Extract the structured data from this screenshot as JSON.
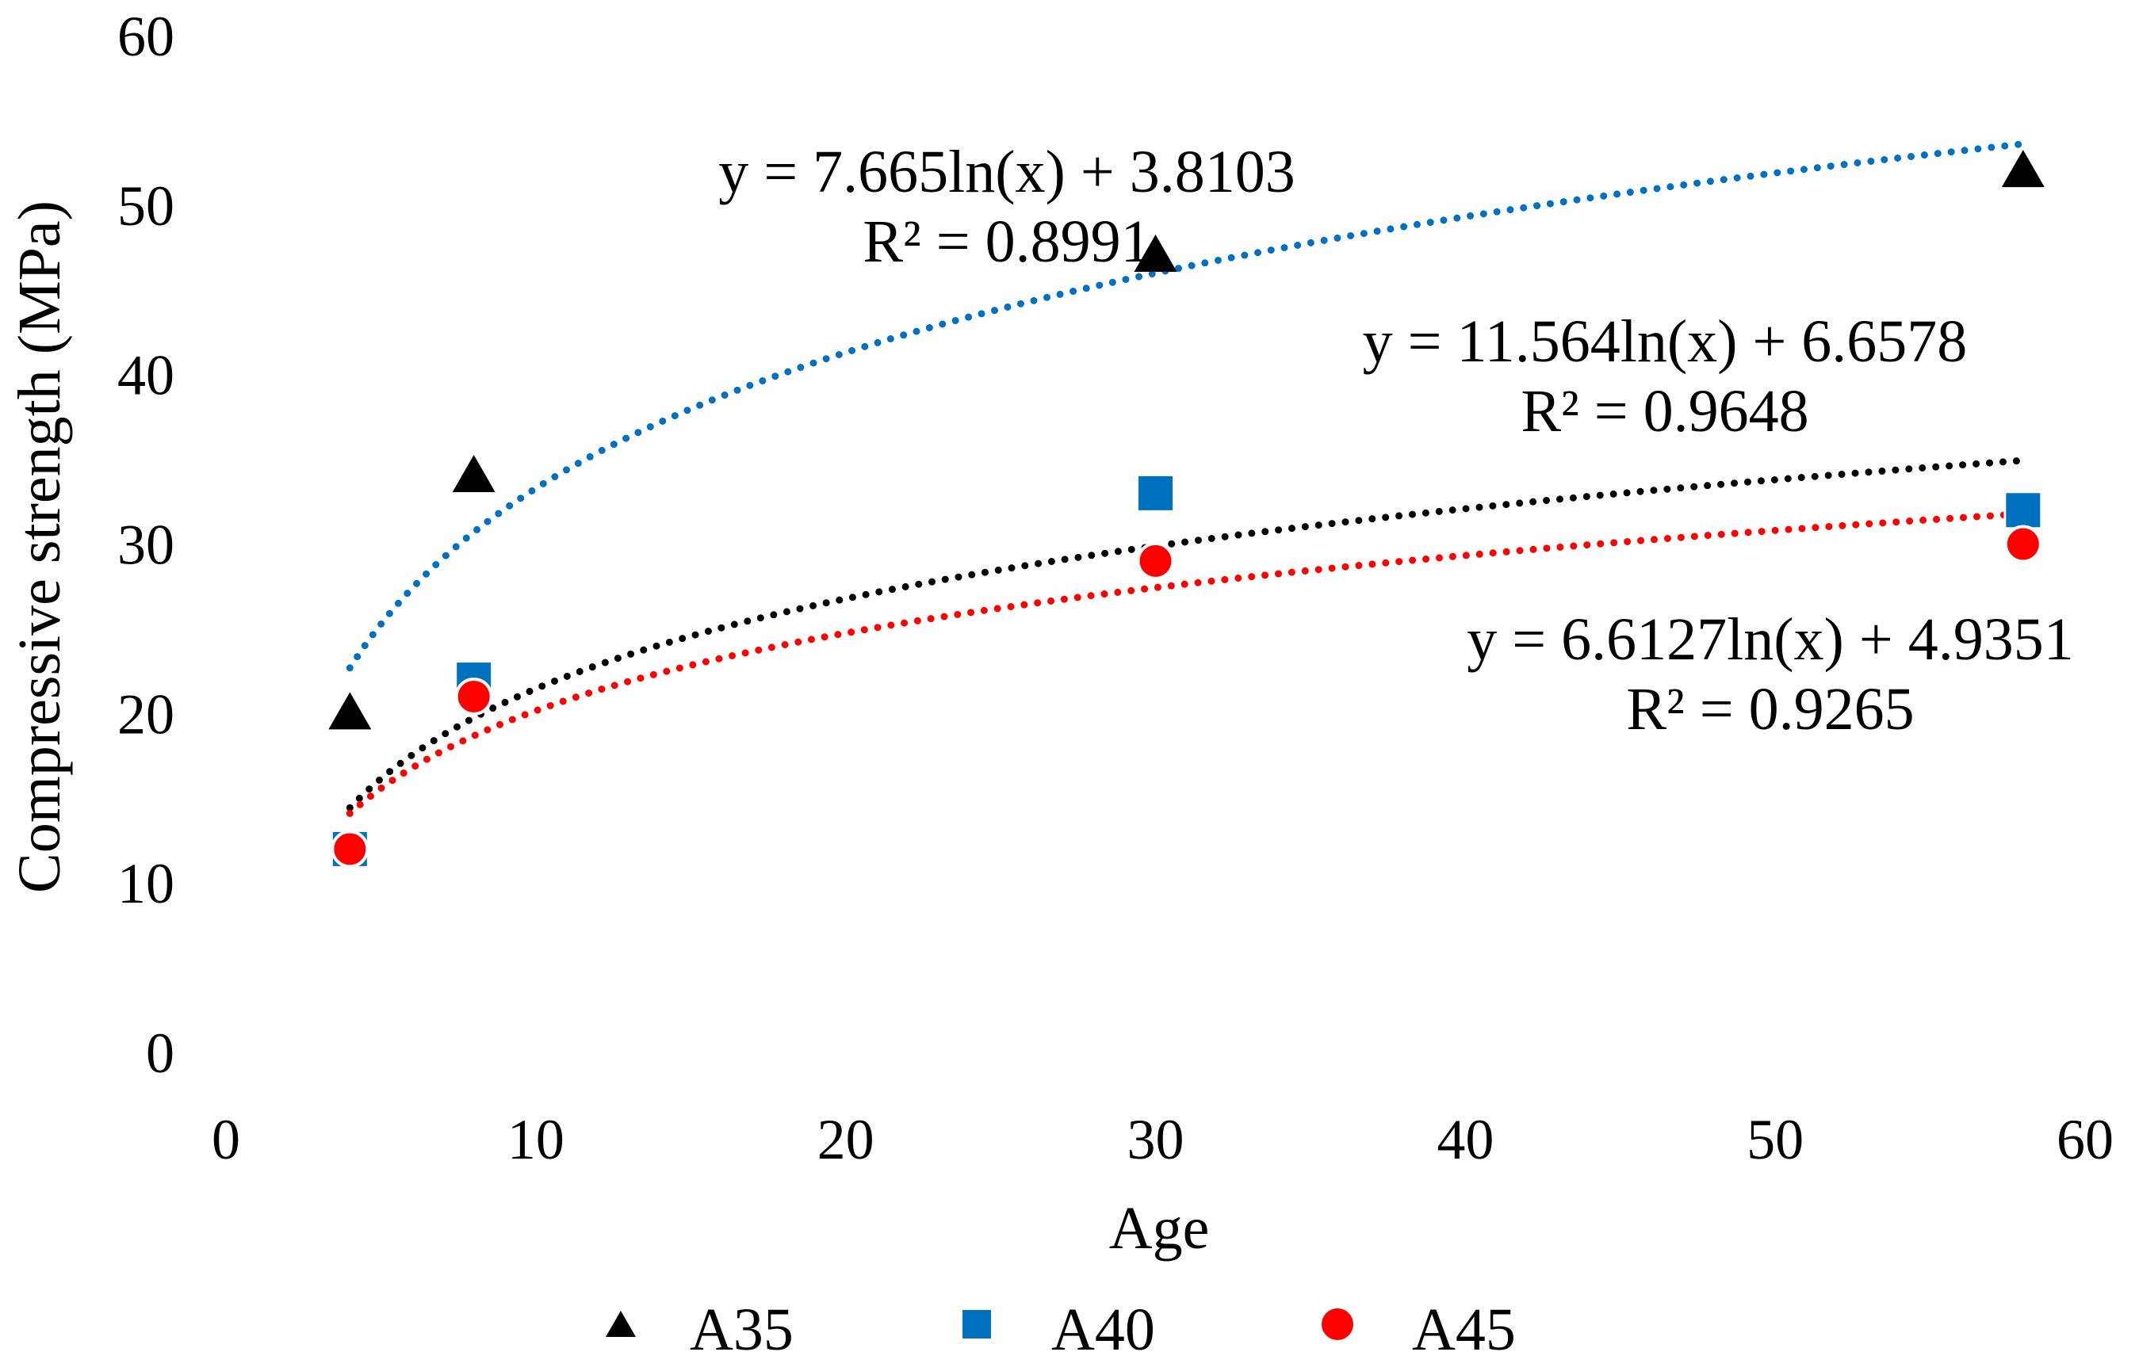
{
  "chart_data": {
    "type": "scatter",
    "title": "",
    "xlabel": "Age",
    "ylabel": "Compressive strength (MPa)",
    "xlim": [
      0,
      60
    ],
    "ylim": [
      0,
      60
    ],
    "x_ticks": [
      "0",
      "10",
      "20",
      "30",
      "40",
      "50",
      "60"
    ],
    "y_ticks": [
      "0",
      "10",
      "20",
      "30",
      "40",
      "50",
      "60"
    ],
    "grid": false,
    "legend_position": "bottom",
    "series": [
      {
        "name": "A35",
        "marker": "triangle",
        "color": "#000000",
        "x": [
          4,
          8,
          30,
          58
        ],
        "y": [
          20,
          34,
          47,
          52
        ],
        "trendline": {
          "type": "log",
          "a": 7.665,
          "b": 3.8103,
          "x_range": [
            4,
            58
          ],
          "equation": "y = 7.665ln(x) + 3.8103",
          "r2": "R² = 0.8991"
        }
      },
      {
        "name": "A40",
        "marker": "square",
        "color": "#0070C0",
        "x": [
          4,
          8,
          30,
          58
        ],
        "y": [
          12,
          22,
          33,
          32
        ],
        "trendline": {
          "type": "log",
          "a": 11.564,
          "b": 6.6578,
          "x_range": [
            4,
            58
          ],
          "equation": "y = 11.564ln(x) + 6.6578",
          "r2": "R² = 0.9648"
        }
      },
      {
        "name": "A45",
        "marker": "circle",
        "color": "#FF0000",
        "x": [
          4,
          8,
          30,
          58
        ],
        "y": [
          12,
          21,
          29,
          30
        ],
        "trendline": {
          "type": "log",
          "a": 6.6127,
          "b": 4.9351,
          "x_range": [
            4,
            58
          ],
          "equation": "y = 6.6127ln(x) + 4.9351",
          "r2": "R² = 0.9265"
        }
      }
    ]
  }
}
